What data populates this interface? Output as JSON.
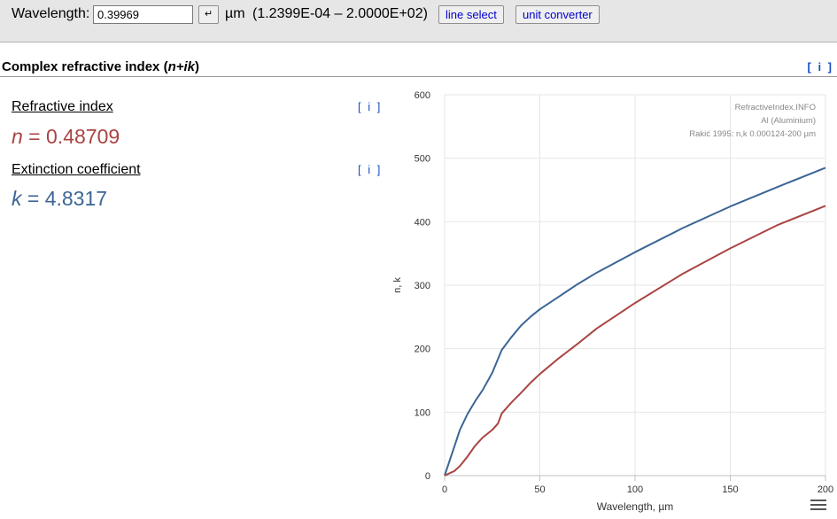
{
  "toolbar": {
    "wavelength_label": "Wavelength:",
    "wavelength_value": "0.39969",
    "enter_glyph": "↵",
    "unit": "µm",
    "range": "(1.2399E-04 – 2.0000E+02)",
    "line_select_label": "line select",
    "unit_converter_label": "unit converter"
  },
  "section": {
    "title_prefix": "Complex refractive index (",
    "title_formula": "n+ik",
    "title_suffix": ")",
    "info_label": "[ i ]"
  },
  "refractive_index": {
    "heading": "Refractive index",
    "info_label": "[ i ]",
    "symbol": "n",
    "value": " = 0.48709"
  },
  "extinction": {
    "heading": "Extinction coefficient",
    "info_label": "[ i ]",
    "symbol": "k",
    "value": " = 4.8317"
  },
  "colors": {
    "n": "#a94442",
    "k": "#3c6595"
  },
  "chart_data": {
    "type": "line",
    "xlabel": "Wavelength, µm",
    "ylabel": "n, k",
    "xlim": [
      0,
      200
    ],
    "ylim": [
      0,
      600
    ],
    "xticks": [
      0,
      50,
      100,
      150,
      200
    ],
    "yticks": [
      0,
      100,
      200,
      300,
      400,
      500,
      600
    ],
    "grid": true,
    "credits": [
      "RefractiveIndex.INFO",
      "Al (Aluminium)",
      "Rakić 1995: n,k 0.000124-200 µm"
    ],
    "series": [
      {
        "name": "k",
        "color": "#3c6595",
        "x": [
          0,
          2,
          5,
          8,
          12,
          16,
          20,
          25,
          30,
          35,
          40,
          45,
          50,
          60,
          70,
          80,
          90,
          100,
          125,
          150,
          175,
          200
        ],
        "y": [
          0,
          18,
          45,
          72,
          97,
          117,
          135,
          162,
          198,
          218,
          236,
          250,
          262,
          282,
          302,
          320,
          336,
          352,
          390,
          424,
          455,
          485
        ]
      },
      {
        "name": "n",
        "color": "#a94442",
        "x": [
          0,
          2,
          5,
          8,
          12,
          16,
          20,
          25,
          28,
          30,
          35,
          40,
          45,
          50,
          60,
          70,
          80,
          90,
          100,
          125,
          150,
          175,
          200
        ],
        "y": [
          0,
          3,
          7,
          15,
          30,
          47,
          60,
          72,
          82,
          98,
          115,
          130,
          146,
          160,
          185,
          208,
          232,
          252,
          272,
          318,
          358,
          395,
          425
        ]
      }
    ]
  }
}
